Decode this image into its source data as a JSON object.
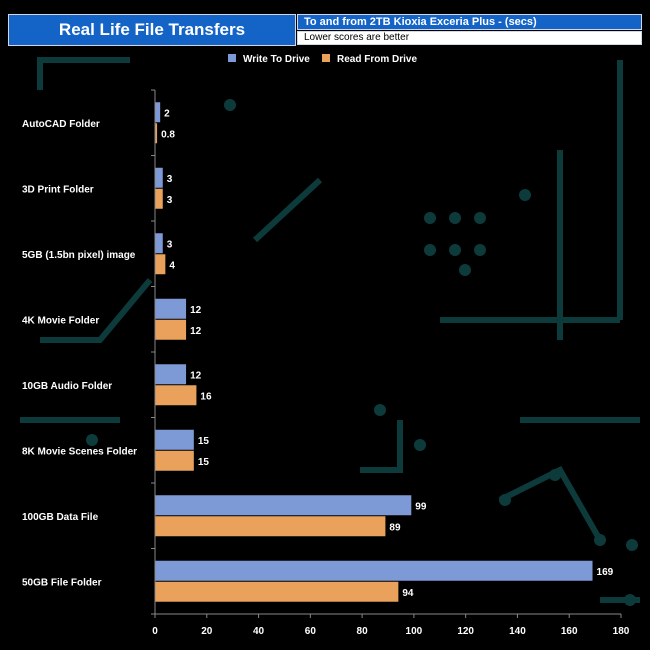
{
  "header": {
    "title": "Real Life File Transfers",
    "subtitle": "To and from 2TB Kioxia Exceria Plus - (secs)",
    "note": "Lower scores are better"
  },
  "colors": {
    "write": "#7e9ad6",
    "read": "#e9a15b",
    "text": "#ffffff",
    "axis": "#888888",
    "circuit": "#0d3b3b"
  },
  "chart_data": {
    "type": "bar",
    "orientation": "horizontal",
    "categories": [
      "AutoCAD Folder",
      "3D Print Folder",
      "5GB (1.5bn pixel) image",
      "4K Movie Folder",
      "10GB Audio Folder",
      "8K Movie Scenes Folder",
      "100GB Data File",
      "50GB File Folder"
    ],
    "series": [
      {
        "name": "Write To  Drive",
        "values": [
          2,
          3,
          3,
          12,
          12,
          15,
          99,
          169
        ],
        "labels": [
          "2",
          "3",
          "3",
          "12",
          "12",
          "15",
          "99",
          "169"
        ]
      },
      {
        "name": "Read From  Drive",
        "values": [
          0.8,
          3,
          4,
          12,
          16,
          15,
          89,
          94
        ],
        "labels": [
          "0.8",
          "3",
          "4",
          "12",
          "16",
          "15",
          "89",
          "94"
        ]
      }
    ],
    "xlim": [
      0,
      180
    ],
    "xticks": [
      0,
      20,
      40,
      60,
      80,
      100,
      120,
      140,
      160,
      180
    ],
    "legend": "top-center",
    "grid": false
  }
}
